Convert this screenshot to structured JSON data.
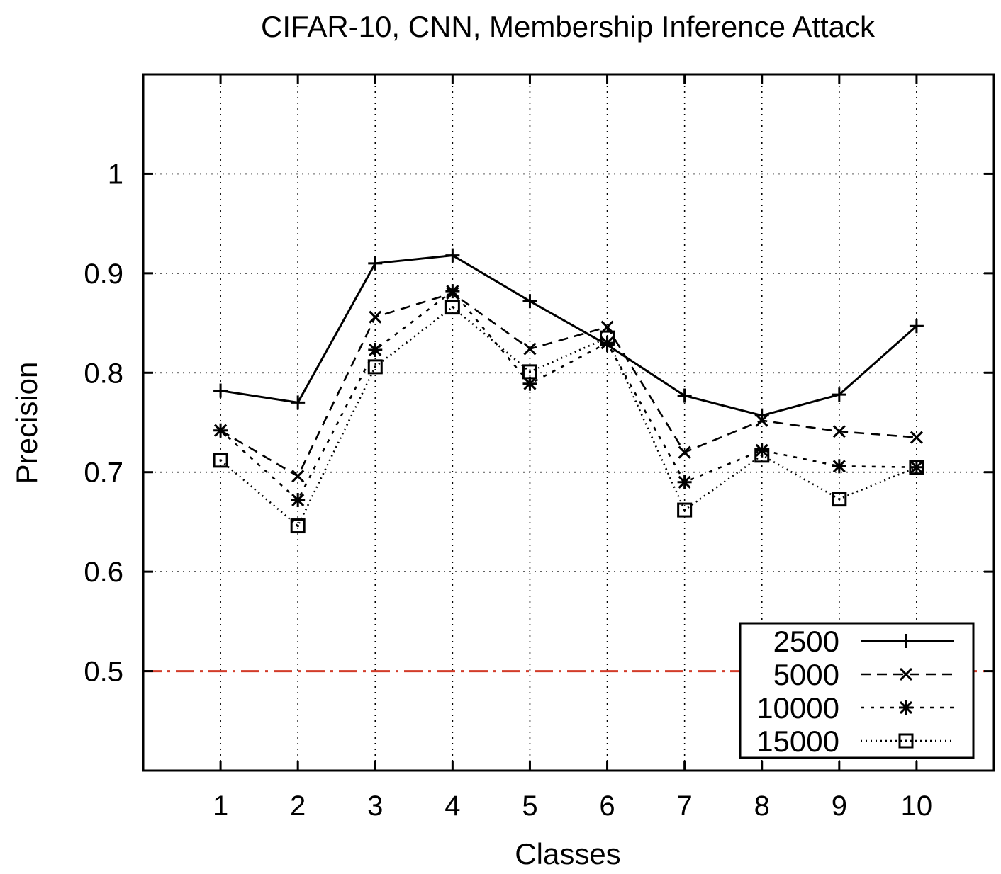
{
  "chart_data": {
    "type": "line",
    "title": "CIFAR-10, CNN, Membership Inference Attack",
    "xlabel": "Classes",
    "ylabel": "Precision",
    "x": [
      1,
      2,
      3,
      4,
      5,
      6,
      7,
      8,
      9,
      10
    ],
    "xlim": [
      0,
      11
    ],
    "ylim": [
      0.4,
      1.1
    ],
    "yticks": [
      "0.5",
      "0.6",
      "0.7",
      "0.8",
      "0.9",
      "1"
    ],
    "xticks": [
      "1",
      "2",
      "3",
      "4",
      "5",
      "6",
      "7",
      "8",
      "9",
      "10"
    ],
    "grid": true,
    "legend_position": "bottom-right",
    "reference_line": {
      "y": 0.5,
      "color": "#d23c2a",
      "style": "dash-dot"
    },
    "series": [
      {
        "name": "2500",
        "marker": "plus",
        "style": "solid",
        "values": [
          0.782,
          0.77,
          0.91,
          0.918,
          0.872,
          0.828,
          0.777,
          0.757,
          0.778,
          0.847
        ]
      },
      {
        "name": "5000",
        "marker": "cross",
        "style": "dashed",
        "values": [
          0.742,
          0.696,
          0.856,
          0.88,
          0.824,
          0.846,
          0.72,
          0.752,
          0.741,
          0.735
        ]
      },
      {
        "name": "10000",
        "marker": "star",
        "style": "dotted",
        "values": [
          0.742,
          0.672,
          0.823,
          0.882,
          0.789,
          0.83,
          0.69,
          0.722,
          0.706,
          0.705
        ]
      },
      {
        "name": "15000",
        "marker": "square",
        "style": "finedot",
        "values": [
          0.712,
          0.646,
          0.806,
          0.866,
          0.801,
          0.835,
          0.662,
          0.717,
          0.673,
          0.705
        ]
      }
    ]
  }
}
